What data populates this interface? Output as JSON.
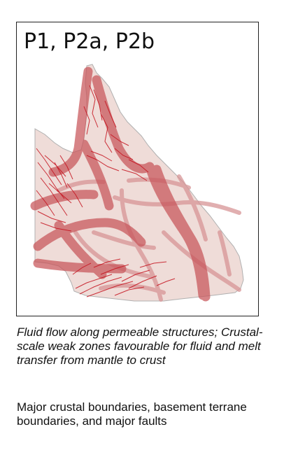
{
  "map": {
    "title": "P1, P2a, P2b",
    "colors": {
      "land_fill": "#efdcd8",
      "land_stroke": "#b0b0b0",
      "major_zone": "#c8555a",
      "boundary": "#d79596",
      "fault": "#c4101c"
    }
  },
  "caption": "Fluid flow along permeable structures; Crustal-scale weak zones favourable for fluid and melt transfer from mantle to crust",
  "description": "Major crustal boundaries, basement terrane boundaries, and major faults"
}
